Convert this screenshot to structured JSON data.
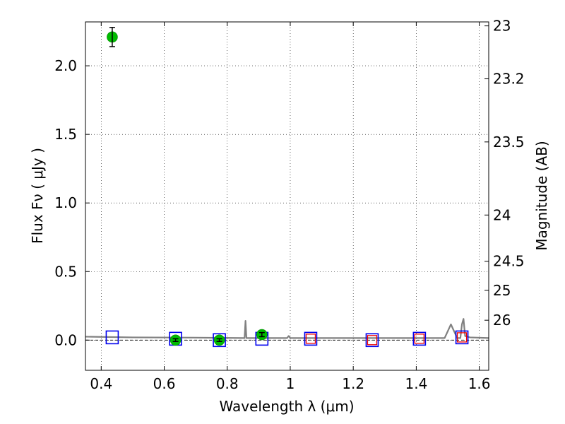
{
  "chart_data": {
    "type": "scatter",
    "xlabel": "Wavelength  λ (μm)",
    "ylabel": "Flux  Fν  ( μJy )",
    "y2label": "Magnitude (AB)",
    "xlim": [
      0.35,
      1.63
    ],
    "ylim": [
      -0.22,
      2.32
    ],
    "xticks": [
      0.4,
      0.6,
      0.8,
      1.0,
      1.2,
      1.4,
      1.6
    ],
    "xtick_labels": [
      "0.4",
      "0.6",
      "0.8",
      "1",
      "1.2",
      "1.4",
      "1.6"
    ],
    "yticks": [
      0.0,
      0.5,
      1.0,
      1.5,
      2.0
    ],
    "ytick_labels": [
      "0.0",
      "0.5",
      "1.0",
      "1.5",
      "2.0"
    ],
    "y2ticks": [
      {
        "label": "23",
        "flux": 2.291
      },
      {
        "label": "23.2",
        "flux": 1.905
      },
      {
        "label": "23.5",
        "flux": 1.445
      },
      {
        "label": "24",
        "flux": 0.912
      },
      {
        "label": "24.5",
        "flux": 0.575
      },
      {
        "label": "25",
        "flux": 0.363
      },
      {
        "label": "26",
        "flux": 0.145
      }
    ],
    "grid": true,
    "series": [
      {
        "kind": "observed",
        "color": "#00bb00",
        "points": [
          {
            "x": 0.435,
            "y": 2.21,
            "yerr": 0.07
          },
          {
            "x": 0.636,
            "y": 0.0,
            "yerr": 0.01
          },
          {
            "x": 0.775,
            "y": 0.0,
            "yerr": 0.01
          },
          {
            "x": 0.91,
            "y": 0.04,
            "yerr": 0.015
          }
        ]
      },
      {
        "kind": "model-all",
        "color": "#0000ee",
        "points": [
          {
            "x": 0.435,
            "y": 0.02
          },
          {
            "x": 0.636,
            "y": 0.01
          },
          {
            "x": 0.775,
            "y": 0.0
          },
          {
            "x": 0.91,
            "y": 0.01
          },
          {
            "x": 1.065,
            "y": 0.01
          },
          {
            "x": 1.26,
            "y": 0.0
          },
          {
            "x": 1.41,
            "y": 0.01
          },
          {
            "x": 1.545,
            "y": 0.02
          }
        ]
      },
      {
        "kind": "model-nir",
        "color": "#ee0000",
        "points": [
          {
            "x": 1.065,
            "y": 0.01
          },
          {
            "x": 1.26,
            "y": 0.0
          },
          {
            "x": 1.41,
            "y": 0.01
          },
          {
            "x": 1.545,
            "y": 0.02
          }
        ]
      },
      {
        "kind": "sed",
        "color": "#808080",
        "x": [
          0.35,
          0.5,
          0.7,
          0.855,
          0.858,
          0.861,
          0.864,
          0.95,
          0.99,
          0.995,
          1.0,
          1.1,
          1.3,
          1.45,
          1.49,
          1.51,
          1.53,
          1.54,
          1.545,
          1.55,
          1.555,
          1.57,
          1.63
        ],
        "y": [
          0.025,
          0.02,
          0.018,
          0.015,
          0.14,
          0.015,
          0.015,
          0.015,
          0.015,
          0.03,
          0.015,
          0.015,
          0.015,
          0.015,
          0.015,
          0.115,
          0.015,
          0.015,
          0.115,
          0.155,
          0.03,
          0.02,
          0.015
        ]
      }
    ]
  }
}
